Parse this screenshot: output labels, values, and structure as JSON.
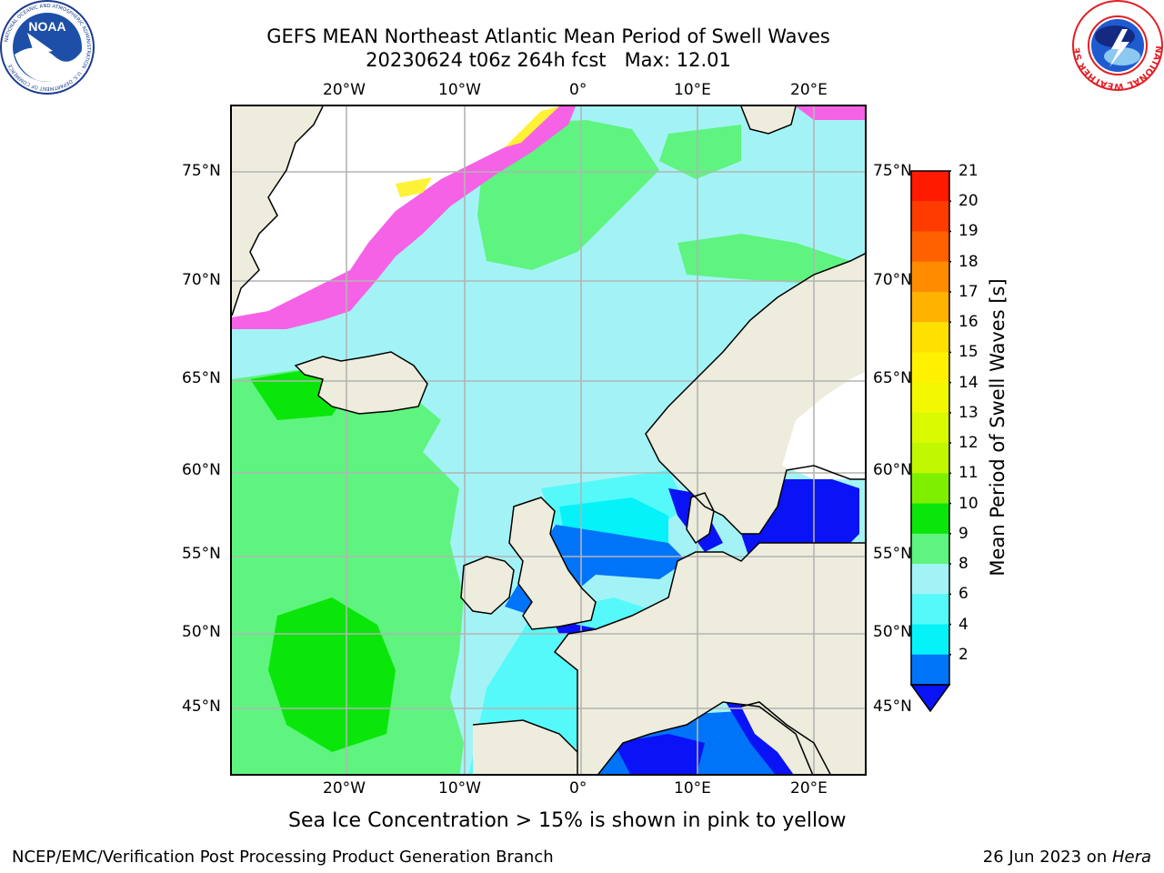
{
  "title": {
    "line1": "GEFS MEAN Northeast Atlantic Mean Period of Swell Waves",
    "line2": "20230624 t06z 264h fcst   Max: 12.01"
  },
  "logos": {
    "left": {
      "name": "noaa-logo",
      "text": "NOAA",
      "ring_text": "NATIONAL OCEANIC AND ATMOSPHERIC ADMINISTRATION · U.S. DEPARTMENT OF COMMERCE"
    },
    "right": {
      "name": "nws-logo",
      "ring_text": "NATIONAL WEATHER SERVICE"
    }
  },
  "map": {
    "lon_ticks": [
      "20°W",
      "10°W",
      "0°",
      "10°E",
      "20°E"
    ],
    "lat_ticks": [
      "75°N",
      "70°N",
      "65°N",
      "60°N",
      "55°N",
      "50°N",
      "45°N"
    ],
    "colors": {
      "land": "#eeecdc",
      "ice": "#ffffff",
      "gridline": "#b4b4b4",
      "coast": "#000000",
      "p2": "#0a13f6",
      "p4": "#0074f9",
      "p6": "#06f2f9",
      "p8": "#56f9f9",
      "p9": "#a3f3f6",
      "p10": "#5ef47f",
      "p11": "#0ae60a",
      "ice_pink": "#f662e6",
      "ice_yellow": "#fef236"
    }
  },
  "colorbar": {
    "label": "Mean Period of Swell Waves [s]",
    "ticks": [
      "21",
      "20",
      "19",
      "18",
      "17",
      "16",
      "15",
      "14",
      "13",
      "12",
      "11",
      "10",
      "9",
      "8",
      "6",
      "4",
      "2"
    ],
    "colors": [
      "#ff1a00",
      "#ff3c00",
      "#ff6100",
      "#ff8c00",
      "#ffb200",
      "#ffe000",
      "#fff100",
      "#f2f800",
      "#d9fa00",
      "#bff800",
      "#7fef00",
      "#0ae60a",
      "#5ef47f",
      "#a3f3f6",
      "#56f9f9",
      "#06f2f9",
      "#0074f9"
    ],
    "extend_color": "#0a13f6"
  },
  "caption": "Sea Ice Concentration > 15% is shown in pink to yellow",
  "footer": {
    "left": "NCEP/EMC/Verification Post Processing Product Generation Branch",
    "right_prefix": "26 Jun 2023 on ",
    "right_italic": "Hera"
  }
}
